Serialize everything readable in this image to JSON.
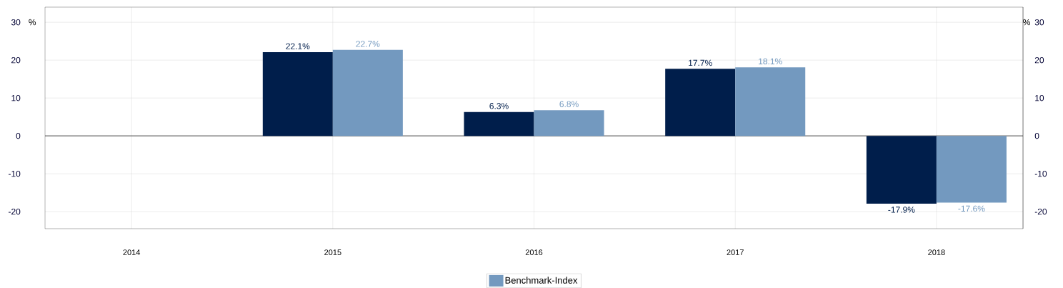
{
  "chart_data": {
    "type": "bar",
    "categories": [
      "2014",
      "2015",
      "2016",
      "2017",
      "2018"
    ],
    "series": [
      {
        "color": "#001e4b",
        "values": [
          null,
          22.1,
          6.3,
          17.7,
          -17.9
        ],
        "value_labels": [
          null,
          "22.1%",
          "6.3%",
          "17.7%",
          "-17.9%"
        ]
      },
      {
        "name": "Benchmark-Index",
        "color": "#7399bf",
        "values": [
          null,
          22.7,
          6.8,
          18.1,
          -17.6
        ],
        "value_labels": [
          null,
          "22.7%",
          "6.8%",
          "18.1%",
          "-17.6%"
        ]
      }
    ],
    "ylabel": "%",
    "y2label": "%",
    "ylim": [
      -24.5,
      34
    ],
    "yticks": [
      -20,
      -10,
      0,
      10,
      20,
      30
    ],
    "y2lim": [
      -24.5,
      34
    ],
    "y2ticks": [
      -20,
      -10,
      0,
      10,
      20,
      30
    ],
    "ref_lines": [
      {
        "axis": "y",
        "value": 0,
        "color": "#333333"
      }
    ],
    "grid": true,
    "legend": "bottom"
  }
}
